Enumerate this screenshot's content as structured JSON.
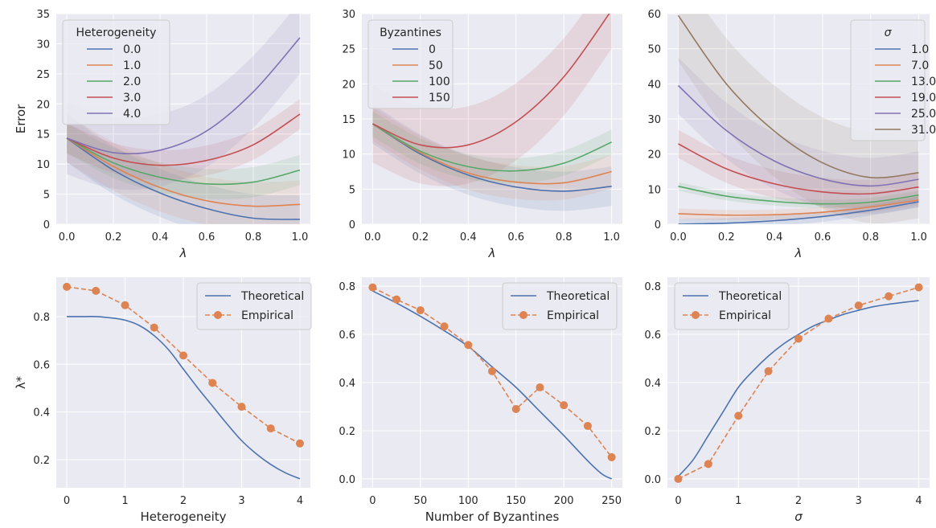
{
  "chart_data": [
    {
      "type": "line",
      "panel": "top-left",
      "xlabel": "λ",
      "ylabel": "Error",
      "xlim": [
        -0.045,
        1.045
      ],
      "ylim": [
        0,
        35
      ],
      "xticks": [
        "0.0",
        "0.2",
        "0.4",
        "0.6",
        "0.8",
        "1.0"
      ],
      "xtick_values": [
        0,
        0.2,
        0.4,
        0.6,
        0.8,
        1.0
      ],
      "yticks": [
        "0",
        "5",
        "10",
        "15",
        "20",
        "25",
        "30",
        "35"
      ],
      "ytick_values": [
        0,
        5,
        10,
        15,
        20,
        25,
        30,
        35
      ],
      "grid": true,
      "legend": {
        "title": "Heterogeneity",
        "placement": "top-left"
      },
      "x": [
        0,
        0.2,
        0.4,
        0.6,
        0.8,
        1.0
      ],
      "series": [
        {
          "name": "0.0",
          "color": "#4c72b0",
          "values": [
            14.3,
            9.0,
            5.2,
            2.6,
            1.0,
            0.8
          ],
          "band": 4
        },
        {
          "name": "1.0",
          "color": "#dd8452",
          "values": [
            14.3,
            9.6,
            6.1,
            3.9,
            3.0,
            3.3
          ],
          "band": 4
        },
        {
          "name": "2.0",
          "color": "#55a868",
          "values": [
            14.3,
            10.2,
            7.8,
            6.7,
            7.0,
            9.0
          ],
          "band": 2.5
        },
        {
          "name": "3.0",
          "color": "#c44e52",
          "values": [
            14.3,
            11.0,
            9.8,
            10.6,
            13.2,
            18.3
          ],
          "band": 2.5
        },
        {
          "name": "4.0",
          "color": "#8172b3",
          "values": [
            14.3,
            11.9,
            12.3,
            15.5,
            22.0,
            31.0
          ],
          "band": 6
        }
      ]
    },
    {
      "type": "line",
      "panel": "top-middle",
      "xlabel": "λ",
      "ylabel": "",
      "xlim": [
        -0.045,
        1.045
      ],
      "ylim": [
        0,
        30
      ],
      "xticks": [
        "0.0",
        "0.2",
        "0.4",
        "0.6",
        "0.8",
        "1.0"
      ],
      "xtick_values": [
        0,
        0.2,
        0.4,
        0.6,
        0.8,
        1.0
      ],
      "yticks": [
        "0",
        "5",
        "10",
        "15",
        "20",
        "25",
        "30"
      ],
      "ytick_values": [
        0,
        5,
        10,
        15,
        20,
        25,
        30
      ],
      "grid": true,
      "legend": {
        "title": "Byzantines",
        "placement": "top-left"
      },
      "x": [
        0,
        0.2,
        0.4,
        0.6,
        0.8,
        1.0
      ],
      "series": [
        {
          "name": "0",
          "color": "#4c72b0",
          "values": [
            14.3,
            10.0,
            7.0,
            5.3,
            4.7,
            5.4
          ],
          "band": 2.8
        },
        {
          "name": "50",
          "color": "#dd8452",
          "values": [
            14.3,
            10.2,
            7.3,
            6.0,
            5.9,
            7.5
          ],
          "band": 2.4
        },
        {
          "name": "100",
          "color": "#55a868",
          "values": [
            14.3,
            10.4,
            8.2,
            7.6,
            8.7,
            11.7
          ],
          "band": 1.8
        },
        {
          "name": "150",
          "color": "#c44e52",
          "values": [
            14.3,
            11.3,
            11.3,
            14.6,
            21.0,
            30.5
          ],
          "band": 5.5
        }
      ]
    },
    {
      "type": "line",
      "panel": "top-right",
      "xlabel": "λ",
      "ylabel": "",
      "xlim": [
        -0.045,
        1.045
      ],
      "ylim": [
        0,
        60
      ],
      "xticks": [
        "0.0",
        "0.2",
        "0.4",
        "0.6",
        "0.8",
        "1.0"
      ],
      "xtick_values": [
        0,
        0.2,
        0.4,
        0.6,
        0.8,
        1.0
      ],
      "yticks": [
        "0",
        "10",
        "20",
        "30",
        "40",
        "50",
        "60"
      ],
      "ytick_values": [
        0,
        10,
        20,
        30,
        40,
        50,
        60
      ],
      "grid": true,
      "legend": {
        "title": "σ",
        "placement": "top-right"
      },
      "x": [
        0,
        0.2,
        0.4,
        0.6,
        0.8,
        1.0
      ],
      "series": [
        {
          "name": "1.0",
          "color": "#4c72b0",
          "values": [
            0.0,
            0.3,
            1.0,
            2.2,
            4.0,
            6.4
          ],
          "band": 1.5
        },
        {
          "name": "7.0",
          "color": "#dd8452",
          "values": [
            3.0,
            2.6,
            2.7,
            3.4,
            4.9,
            6.9
          ],
          "band": 1.5
        },
        {
          "name": "13.0",
          "color": "#55a868",
          "values": [
            10.8,
            8.0,
            6.5,
            5.8,
            6.3,
            8.3
          ],
          "band": 1.2
        },
        {
          "name": "19.0",
          "color": "#c44e52",
          "values": [
            22.9,
            15.8,
            11.5,
            9.2,
            8.7,
            10.6
          ],
          "band": 4
        },
        {
          "name": "25.0",
          "color": "#8172b3",
          "values": [
            39.5,
            26.7,
            18.0,
            12.9,
            10.9,
            12.8
          ],
          "band": 8
        },
        {
          "name": "31.0",
          "color": "#937860",
          "values": [
            59.5,
            40.0,
            26.5,
            17.5,
            13.3,
            14.7
          ],
          "band": 13
        }
      ]
    },
    {
      "type": "line",
      "panel": "bottom-left",
      "xlabel": "Heterogeneity",
      "ylabel": "λ*",
      "xlim": [
        -0.18,
        4.18
      ],
      "ylim": [
        0.082,
        0.965
      ],
      "xticks": [
        "0",
        "1",
        "2",
        "3",
        "4"
      ],
      "xtick_values": [
        0,
        1,
        2,
        3,
        4
      ],
      "yticks": [
        "0.2",
        "0.4",
        "0.6",
        "0.8"
      ],
      "ytick_values": [
        0.2,
        0.4,
        0.6,
        0.8
      ],
      "grid": true,
      "legend": {
        "placement": "top-right"
      },
      "series": [
        {
          "name": "Theoretical",
          "color": "#4c72b0",
          "style": "solid",
          "x": [
            0,
            0.25,
            0.5,
            0.75,
            1,
            1.25,
            1.5,
            1.75,
            2,
            2.25,
            2.5,
            2.75,
            3,
            3.25,
            3.5,
            3.75,
            4
          ],
          "values": [
            0.8,
            0.8,
            0.8,
            0.795,
            0.785,
            0.762,
            0.72,
            0.66,
            0.58,
            0.5,
            0.425,
            0.35,
            0.28,
            0.225,
            0.18,
            0.145,
            0.12
          ]
        },
        {
          "name": "Empirical",
          "color": "#dd8452",
          "style": "dashed-markers",
          "x": [
            0,
            0.5,
            1,
            1.5,
            2,
            2.5,
            3,
            3.5,
            4
          ],
          "values": [
            0.925,
            0.908,
            0.848,
            0.754,
            0.637,
            0.522,
            0.422,
            0.331,
            0.268
          ]
        }
      ]
    },
    {
      "type": "line",
      "panel": "bottom-middle",
      "xlabel": "Number of Byzantines",
      "ylabel": "",
      "xlim": [
        -11.25,
        261.25
      ],
      "ylim": [
        -0.037,
        0.837
      ],
      "xticks": [
        "0",
        "50",
        "100",
        "150",
        "200",
        "250"
      ],
      "xtick_values": [
        0,
        50,
        100,
        150,
        200,
        250
      ],
      "yticks": [
        "0.0",
        "0.2",
        "0.4",
        "0.6",
        "0.8"
      ],
      "ytick_values": [
        0,
        0.2,
        0.4,
        0.6,
        0.8
      ],
      "grid": true,
      "legend": {
        "placement": "top-right"
      },
      "series": [
        {
          "name": "Theoretical",
          "color": "#4c72b0",
          "style": "solid",
          "x": [
            0,
            25,
            50,
            75,
            100,
            125,
            150,
            175,
            200,
            225,
            240,
            250
          ],
          "values": [
            0.78,
            0.73,
            0.675,
            0.615,
            0.55,
            0.465,
            0.38,
            0.28,
            0.18,
            0.075,
            0.02,
            0.0
          ]
        },
        {
          "name": "Empirical",
          "color": "#dd8452",
          "style": "dashed-markers",
          "x": [
            0,
            25,
            50,
            75,
            100,
            125,
            150,
            175,
            200,
            225,
            250
          ],
          "values": [
            0.795,
            0.745,
            0.7,
            0.633,
            0.556,
            0.447,
            0.29,
            0.38,
            0.306,
            0.22,
            0.09
          ]
        }
      ]
    },
    {
      "type": "line",
      "panel": "bottom-right",
      "xlabel": "σ",
      "ylabel": "",
      "xlim": [
        -0.18,
        4.18
      ],
      "ylim": [
        -0.037,
        0.837
      ],
      "xticks": [
        "0",
        "1",
        "2",
        "3",
        "4"
      ],
      "xtick_values": [
        0,
        1,
        2,
        3,
        4
      ],
      "yticks": [
        "0.0",
        "0.2",
        "0.4",
        "0.6",
        "0.8"
      ],
      "ytick_values": [
        0,
        0.2,
        0.4,
        0.6,
        0.8
      ],
      "grid": true,
      "legend": {
        "placement": "top-left"
      },
      "series": [
        {
          "name": "Theoretical",
          "color": "#4c72b0",
          "style": "solid",
          "x": [
            0,
            0.25,
            0.5,
            0.75,
            1,
            1.25,
            1.5,
            1.75,
            2,
            2.25,
            2.5,
            2.75,
            3,
            3.25,
            3.5,
            3.75,
            4
          ],
          "values": [
            0.01,
            0.08,
            0.18,
            0.28,
            0.38,
            0.45,
            0.51,
            0.56,
            0.6,
            0.635,
            0.66,
            0.683,
            0.7,
            0.715,
            0.725,
            0.733,
            0.74
          ]
        },
        {
          "name": "Empirical",
          "color": "#dd8452",
          "style": "dashed-markers",
          "x": [
            0,
            0.5,
            1,
            1.5,
            2,
            2.5,
            3,
            3.5,
            4
          ],
          "values": [
            0.0,
            0.062,
            0.262,
            0.447,
            0.582,
            0.665,
            0.72,
            0.758,
            0.795
          ]
        }
      ]
    }
  ]
}
